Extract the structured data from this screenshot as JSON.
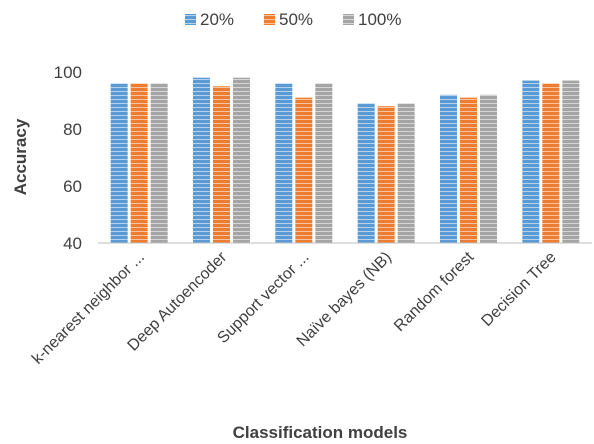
{
  "chart_data": {
    "type": "bar",
    "title": "",
    "xlabel": "Classification models",
    "ylabel": "Accuracy",
    "categories": [
      "k-nearest neighbor ...",
      "Deep Autoencoder",
      "Support vector ...",
      "Naïve bayes (NB)",
      "Random forest",
      "Decision Tree"
    ],
    "series": [
      {
        "name": "20%",
        "values": [
          96,
          98,
          96,
          89,
          92,
          97
        ],
        "color": "#5b9bd5"
      },
      {
        "name": "50%",
        "values": [
          96,
          95,
          91,
          88,
          91,
          96
        ],
        "color": "#ed7d31"
      },
      {
        "name": "100%",
        "values": [
          96,
          98,
          96,
          89,
          92,
          97
        ],
        "color": "#a5a5a5"
      }
    ],
    "ylim": [
      40,
      100
    ],
    "yticks": [
      40,
      60,
      80,
      100
    ],
    "grid": false,
    "legend_position": "top-center",
    "bar_pattern": "horizontal-stripes"
  }
}
